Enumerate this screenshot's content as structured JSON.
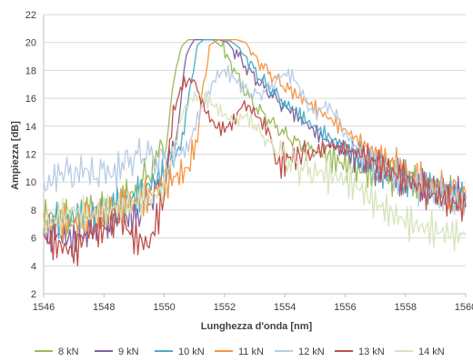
{
  "chart_data": {
    "type": "line",
    "xlabel": "Lunghezza d'onda [nm]",
    "ylabel": "Ampiezza [dB]",
    "xlim": [
      1546,
      1560
    ],
    "ylim": [
      2,
      22
    ],
    "xticks": [
      1546,
      1548,
      1550,
      1552,
      1554,
      1556,
      1558,
      1560
    ],
    "yticks": [
      2,
      4,
      6,
      8,
      10,
      12,
      14,
      16,
      18,
      20,
      22
    ],
    "grid": "horizontal",
    "legend_position": "bottom",
    "series": [
      {
        "name": "8 kN",
        "color": "#9bbb59",
        "x": [
          1546,
          1546.5,
          1547,
          1547.5,
          1548,
          1548.5,
          1549,
          1549.4,
          1549.8,
          1550,
          1550.2,
          1550.4,
          1550.6,
          1550.8,
          1551,
          1551.3,
          1551.6,
          1551.9,
          1552.2,
          1552.6,
          1553,
          1553.4,
          1553.8,
          1554.2,
          1554.6,
          1555,
          1555.5,
          1556,
          1556.5,
          1557,
          1557.5,
          1558,
          1558.5,
          1559,
          1559.5,
          1560
        ],
        "y": [
          7.5,
          7.8,
          7.2,
          8.3,
          8,
          8.6,
          9.2,
          10.5,
          11.5,
          12,
          15,
          18.5,
          19.8,
          20.2,
          20.2,
          20.2,
          20.2,
          19.7,
          18.6,
          16.8,
          15.5,
          14.6,
          13.8,
          13.1,
          12.6,
          12.2,
          11.8,
          11.2,
          10.8,
          10.6,
          10.4,
          10.2,
          9.8,
          9.4,
          9.2,
          8.8
        ]
      },
      {
        "name": "9 kN",
        "color": "#8064a2",
        "x": [
          1546,
          1546.5,
          1547,
          1547.5,
          1548,
          1548.5,
          1549,
          1549.4,
          1549.8,
          1550.1,
          1550.4,
          1550.6,
          1550.8,
          1551,
          1551.2,
          1551.5,
          1551.8,
          1552.1,
          1552.4,
          1552.8,
          1553.2,
          1553.6,
          1554,
          1554.5,
          1555,
          1555.5,
          1556,
          1556.5,
          1557,
          1557.5,
          1558,
          1558.5,
          1559,
          1559.5,
          1560
        ],
        "y": [
          6.5,
          6.2,
          5.8,
          6.5,
          7,
          7.5,
          7.5,
          8.5,
          9.5,
          11.5,
          13,
          17,
          19.5,
          20.2,
          20.2,
          20.2,
          20.2,
          20,
          19.2,
          18,
          17,
          16.2,
          15.4,
          14.6,
          13.6,
          12.8,
          12.2,
          11.6,
          11,
          10.6,
          10.2,
          9.8,
          9.5,
          9.2,
          9
        ]
      },
      {
        "name": "10 kN",
        "color": "#4bacc6",
        "x": [
          1546,
          1546.5,
          1547,
          1547.5,
          1548,
          1548.5,
          1549,
          1549.5,
          1550,
          1550.3,
          1550.6,
          1550.9,
          1551.1,
          1551.3,
          1551.6,
          1551.9,
          1552.2,
          1552.5,
          1552.8,
          1553.2,
          1553.6,
          1554,
          1554.5,
          1555,
          1555.5,
          1556,
          1556.5,
          1557,
          1557.5,
          1558,
          1558.5,
          1559,
          1559.5,
          1560
        ],
        "y": [
          7,
          7.2,
          7.5,
          7.4,
          8,
          8.5,
          8.8,
          9.8,
          10.5,
          11.5,
          13,
          17.5,
          19.8,
          20.2,
          20.2,
          20.2,
          20.1,
          19.6,
          18.6,
          17.4,
          16.5,
          15.7,
          14.8,
          13.9,
          13.2,
          12.5,
          11.8,
          11.2,
          10.6,
          10.2,
          9.8,
          9.5,
          9.2,
          9
        ]
      },
      {
        "name": "11 kN",
        "color": "#f79646",
        "x": [
          1546,
          1546.5,
          1547,
          1547.5,
          1548,
          1548.5,
          1549,
          1549.5,
          1550,
          1550.5,
          1550.8,
          1551.1,
          1551.3,
          1551.5,
          1551.8,
          1552.1,
          1552.4,
          1552.7,
          1553,
          1553.4,
          1553.8,
          1554.2,
          1554.7,
          1555.2,
          1555.7,
          1556.2,
          1556.7,
          1557.2,
          1557.7,
          1558.2,
          1558.7,
          1559.2,
          1559.6,
          1560
        ],
        "y": [
          6.8,
          7.2,
          7,
          7.5,
          7.8,
          8.4,
          8.5,
          9,
          10,
          10.5,
          11,
          13,
          17,
          19.8,
          20.2,
          20.2,
          20.2,
          20,
          19,
          18,
          17.2,
          16.5,
          15.8,
          15,
          14.2,
          13.4,
          12.6,
          11.8,
          11.2,
          10.5,
          10,
          9.5,
          9.3,
          9.2
        ]
      },
      {
        "name": "12 kN",
        "color": "#b9cde5",
        "x": [
          1546,
          1546.3,
          1546.6,
          1547,
          1547.3,
          1547.6,
          1548,
          1548.3,
          1548.6,
          1549,
          1549.4,
          1549.8,
          1550.2,
          1550.5,
          1550.8,
          1551.1,
          1551.4,
          1551.7,
          1552,
          1552.3,
          1552.6,
          1553,
          1553.4,
          1553.8,
          1554,
          1554.3,
          1554.6,
          1555,
          1555.3,
          1555.6,
          1556,
          1556.5,
          1557,
          1557.5,
          1558,
          1558.5,
          1559,
          1559.5,
          1560
        ],
        "y": [
          9.5,
          10.2,
          10.8,
          10.5,
          11,
          10.5,
          10.8,
          10.5,
          11.2,
          11.8,
          12,
          11.5,
          11.8,
          12,
          12.5,
          14.5,
          16,
          17.5,
          18,
          17.5,
          16.8,
          16.2,
          16.6,
          17.5,
          17.8,
          17.5,
          16.2,
          14.8,
          15.5,
          15.2,
          13.5,
          12,
          11.2,
          10.6,
          10,
          9.6,
          9.2,
          8.8,
          8.5
        ]
      },
      {
        "name": "13 kN",
        "color": "#c0504d",
        "x": [
          1546,
          1546.5,
          1547,
          1547.5,
          1548,
          1548.5,
          1549,
          1549.5,
          1550,
          1550.3,
          1550.6,
          1550.9,
          1551.1,
          1551.4,
          1551.7,
          1552,
          1552.3,
          1552.6,
          1552.9,
          1553.2,
          1553.5,
          1553.7,
          1554,
          1554.3,
          1554.6,
          1555,
          1555.5,
          1556,
          1556.5,
          1557,
          1557.5,
          1558,
          1558.5,
          1559,
          1559.5,
          1560
        ],
        "y": [
          6,
          5.5,
          5,
          6.5,
          6.5,
          7.5,
          6,
          5.5,
          9,
          15,
          17,
          17.3,
          16.5,
          15,
          14,
          13.8,
          14.3,
          15.6,
          15.2,
          14.4,
          13.5,
          11.3,
          11.5,
          12,
          11.8,
          12.2,
          12.6,
          12.4,
          12,
          11.4,
          10.8,
          10.2,
          9.6,
          9,
          8.6,
          8.2
        ]
      },
      {
        "name": "14 kN",
        "color": "#d7e4bd",
        "x": [
          1546,
          1546.5,
          1547,
          1547.5,
          1548,
          1548.5,
          1549,
          1549.5,
          1550,
          1550.3,
          1550.6,
          1550.9,
          1551.2,
          1551.5,
          1551.8,
          1552.1,
          1552.4,
          1552.7,
          1553,
          1553.4,
          1553.8,
          1554.2,
          1554.6,
          1555,
          1555.5,
          1556,
          1556.5,
          1557,
          1557.5,
          1558,
          1558.5,
          1559,
          1559.5,
          1560
        ],
        "y": [
          7,
          7.5,
          8,
          7.5,
          8,
          8.2,
          8.5,
          8.8,
          9.5,
          12,
          15,
          16,
          16.2,
          15.8,
          15.2,
          14.6,
          14.4,
          14.8,
          14,
          13,
          12,
          11.5,
          11,
          10.8,
          10.5,
          10.2,
          9.5,
          8.5,
          7.8,
          7.2,
          6.8,
          6.5,
          6.3,
          6.2
        ]
      }
    ]
  }
}
